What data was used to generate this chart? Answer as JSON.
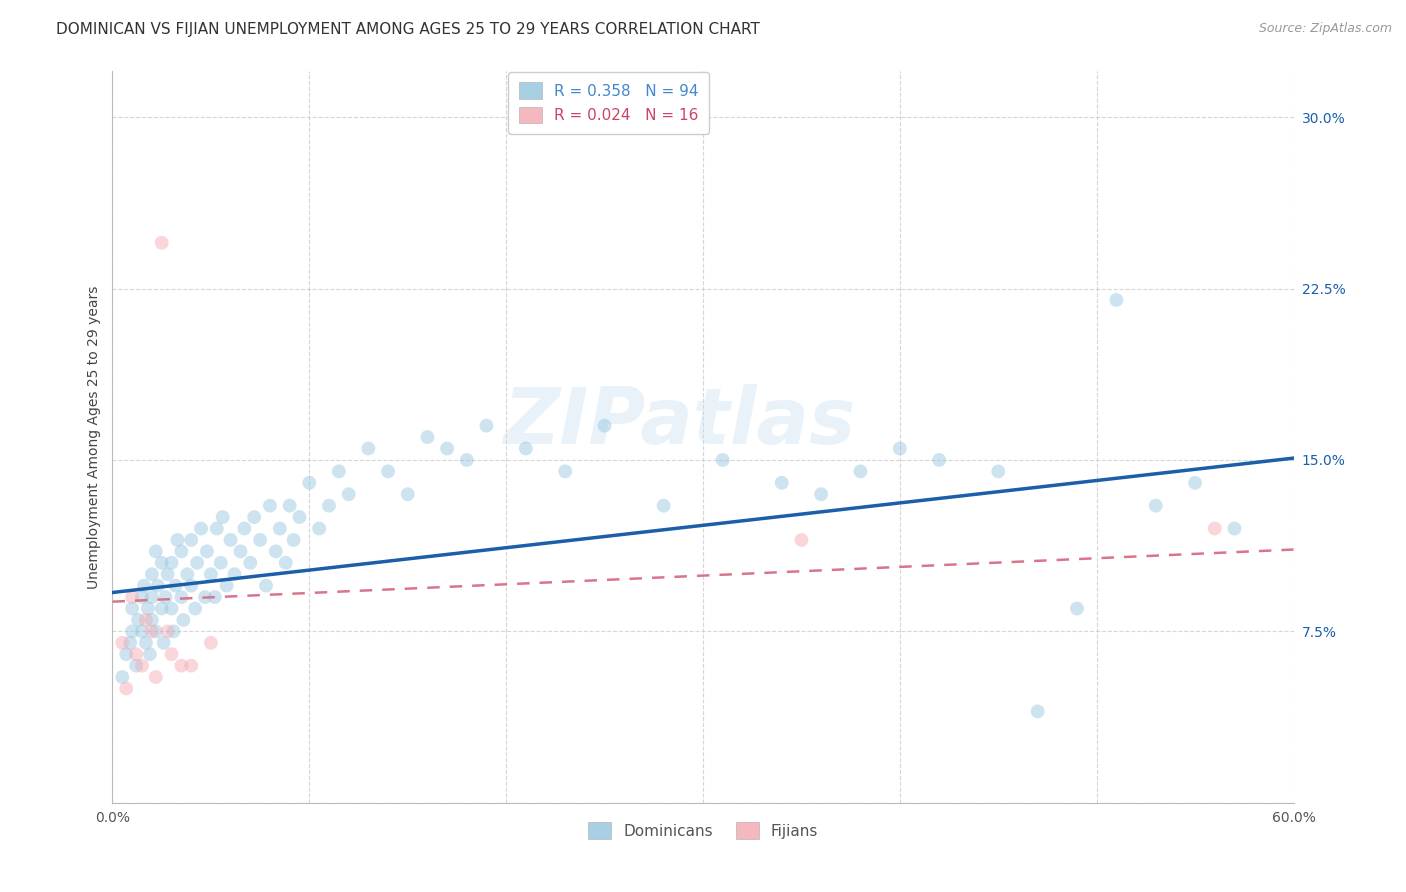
{
  "title": "DOMINICAN VS FIJIAN UNEMPLOYMENT AMONG AGES 25 TO 29 YEARS CORRELATION CHART",
  "source": "Source: ZipAtlas.com",
  "ylabel": "Unemployment Among Ages 25 to 29 years",
  "xlim": [
    0.0,
    0.6
  ],
  "ylim": [
    0.0,
    0.32
  ],
  "xticks": [
    0.0,
    0.1,
    0.2,
    0.3,
    0.4,
    0.5,
    0.6
  ],
  "xticklabels": [
    "0.0%",
    "",
    "",
    "",
    "",
    "",
    "60.0%"
  ],
  "yticks": [
    0.0,
    0.075,
    0.15,
    0.225,
    0.3
  ],
  "yticklabels": [
    "",
    "7.5%",
    "15.0%",
    "22.5%",
    "30.0%"
  ],
  "blue_color": "#92c5de",
  "pink_color": "#f4a6b0",
  "blue_line_color": "#1a5fa8",
  "pink_line_color": "#d9758a",
  "background_color": "#ffffff",
  "grid_color": "#cccccc",
  "dominicans_x": [
    0.005,
    0.007,
    0.009,
    0.01,
    0.01,
    0.012,
    0.013,
    0.015,
    0.015,
    0.016,
    0.017,
    0.018,
    0.019,
    0.02,
    0.02,
    0.02,
    0.022,
    0.022,
    0.023,
    0.025,
    0.025,
    0.026,
    0.027,
    0.028,
    0.03,
    0.03,
    0.031,
    0.032,
    0.033,
    0.035,
    0.035,
    0.036,
    0.038,
    0.04,
    0.04,
    0.042,
    0.043,
    0.045,
    0.047,
    0.048,
    0.05,
    0.052,
    0.053,
    0.055,
    0.056,
    0.058,
    0.06,
    0.062,
    0.065,
    0.067,
    0.07,
    0.072,
    0.075,
    0.078,
    0.08,
    0.083,
    0.085,
    0.088,
    0.09,
    0.092,
    0.095,
    0.1,
    0.105,
    0.11,
    0.115,
    0.12,
    0.13,
    0.14,
    0.15,
    0.16,
    0.17,
    0.18,
    0.19,
    0.21,
    0.23,
    0.25,
    0.28,
    0.31,
    0.34,
    0.36,
    0.38,
    0.4,
    0.42,
    0.45,
    0.47,
    0.49,
    0.51,
    0.53,
    0.55,
    0.57
  ],
  "dominicans_y": [
    0.055,
    0.065,
    0.07,
    0.075,
    0.085,
    0.06,
    0.08,
    0.09,
    0.075,
    0.095,
    0.07,
    0.085,
    0.065,
    0.09,
    0.08,
    0.1,
    0.11,
    0.075,
    0.095,
    0.085,
    0.105,
    0.07,
    0.09,
    0.1,
    0.085,
    0.105,
    0.075,
    0.095,
    0.115,
    0.09,
    0.11,
    0.08,
    0.1,
    0.095,
    0.115,
    0.085,
    0.105,
    0.12,
    0.09,
    0.11,
    0.1,
    0.09,
    0.12,
    0.105,
    0.125,
    0.095,
    0.115,
    0.1,
    0.11,
    0.12,
    0.105,
    0.125,
    0.115,
    0.095,
    0.13,
    0.11,
    0.12,
    0.105,
    0.13,
    0.115,
    0.125,
    0.14,
    0.12,
    0.13,
    0.145,
    0.135,
    0.155,
    0.145,
    0.135,
    0.16,
    0.155,
    0.15,
    0.165,
    0.155,
    0.145,
    0.165,
    0.13,
    0.15,
    0.14,
    0.135,
    0.145,
    0.155,
    0.15,
    0.145,
    0.04,
    0.085,
    0.22,
    0.13,
    0.14,
    0.12
  ],
  "fijians_x": [
    0.005,
    0.007,
    0.01,
    0.012,
    0.015,
    0.017,
    0.02,
    0.022,
    0.025,
    0.028,
    0.03,
    0.035,
    0.04,
    0.05,
    0.35,
    0.56
  ],
  "fijians_y": [
    0.07,
    0.05,
    0.09,
    0.065,
    0.06,
    0.08,
    0.075,
    0.055,
    0.245,
    0.075,
    0.065,
    0.06,
    0.06,
    0.07,
    0.115,
    0.12
  ],
  "blue_intercept": 0.092,
  "blue_slope": 0.098,
  "pink_intercept": 0.088,
  "pink_slope": 0.038,
  "title_fontsize": 11,
  "axis_label_fontsize": 10,
  "tick_fontsize": 10,
  "legend_fontsize": 11,
  "marker_size": 100,
  "marker_alpha": 0.45,
  "watermark": "ZIPatlas"
}
